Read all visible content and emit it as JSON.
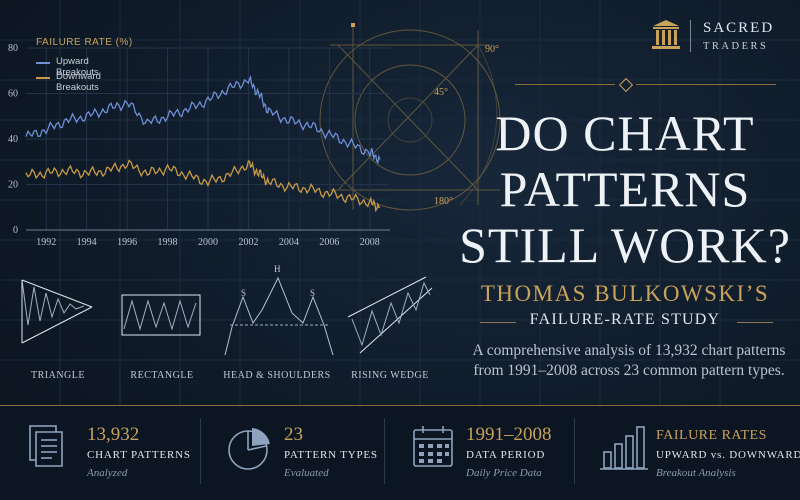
{
  "brand": {
    "line1": "SACRED",
    "line2": "TRADERS"
  },
  "headline": {
    "line1": "DO CHART",
    "line2": "PATTERNS",
    "line3": "STILL WORK?"
  },
  "subtitle": "THOMAS BULKOWSKI’S",
  "study_label": "FAILURE-RATE STUDY",
  "description": "A comprehensive analysis of 13,932 chart patterns from 1991–2008 across 23 common pattern types.",
  "geometry_labels": {
    "angle_90": "90°",
    "angle_45": "45°",
    "angle_180": "180°"
  },
  "patterns": [
    {
      "label": "TRIANGLE"
    },
    {
      "label": "RECTANGLE"
    },
    {
      "label": "HEAD & SHOULDERS",
      "marks": {
        "head": "H",
        "left_shoulder": "S",
        "right_shoulder": "S"
      }
    },
    {
      "label": "RISING WEDGE"
    }
  ],
  "stats": [
    {
      "value": "13,932",
      "label": "CHART PATTERNS",
      "sub": "Analyzed",
      "icon": "document-icon"
    },
    {
      "value": "23",
      "label": "PATTERN TYPES",
      "sub": "Evaluated",
      "icon": "pie-chart-icon"
    },
    {
      "value": "1991–2008",
      "label": "DATA PERIOD",
      "sub": "Daily Price Data",
      "icon": "calendar-icon"
    },
    {
      "value": "FAILURE RATES",
      "label": "UPWARD vs. DOWNWARD",
      "sub": "Breakout Analysis",
      "icon": "bar-chart-icon"
    }
  ],
  "colors": {
    "gold": "#c9a25a",
    "upward": "#6f8fd6",
    "downward": "#c79a45",
    "background": "#0f1a27"
  },
  "chart_data": {
    "type": "line",
    "title": "FAILURE RATE (%)",
    "xlabel": "",
    "ylabel": "",
    "x_ticks": [
      "1992",
      "1994",
      "1996",
      "1998",
      "2000",
      "2002",
      "2004",
      "2006",
      "2008"
    ],
    "y_ticks": [
      "0",
      "20",
      "40",
      "60",
      "80"
    ],
    "xlim": [
      1991,
      2009
    ],
    "ylim": [
      0,
      80
    ],
    "legend_position": "top-left",
    "grid": true,
    "x": [
      1991,
      1992,
      1993,
      1994,
      1995,
      1996,
      1997,
      1998,
      1999,
      2000,
      2001,
      2002,
      2002.5,
      2003,
      2004,
      2005,
      2006,
      2007,
      2008,
      2008.5
    ],
    "series": [
      {
        "name": "Upward Breakouts",
        "color": "#6f8fd6",
        "values": [
          41,
          44,
          48,
          50,
          53,
          56,
          47,
          50,
          53,
          57,
          62,
          66,
          60,
          52,
          48,
          46,
          42,
          38,
          34,
          31
        ]
      },
      {
        "name": "Downward Breakouts",
        "color": "#c79a45",
        "values": [
          24,
          25,
          26,
          25,
          26,
          29,
          25,
          27,
          24,
          21,
          24,
          29,
          25,
          21,
          19,
          18,
          16,
          14,
          12,
          10
        ]
      }
    ]
  }
}
